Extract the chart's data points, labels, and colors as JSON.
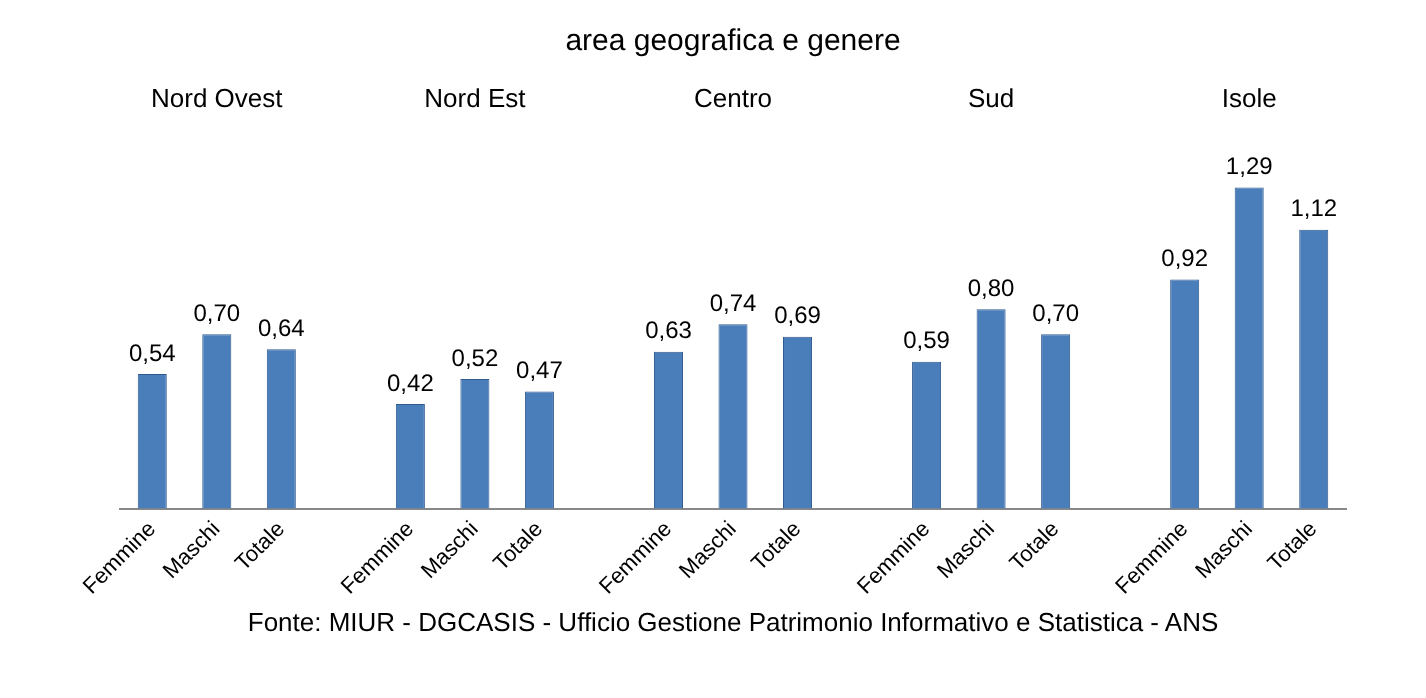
{
  "chart_data": {
    "type": "bar",
    "title": "area geografica e genere",
    "categories": [
      "Femmine",
      "Maschi",
      "Totale",
      null,
      "Femmine",
      "Maschi",
      "Totale",
      null,
      "Femmine",
      "Maschi",
      "Totale",
      null,
      "Femmine",
      "Maschi",
      "Totale",
      null,
      "Femmine",
      "Maschi",
      "Totale"
    ],
    "values": [
      0.54,
      0.7,
      0.64,
      null,
      0.42,
      0.52,
      0.47,
      null,
      0.63,
      0.74,
      0.69,
      null,
      0.59,
      0.8,
      0.7,
      null,
      0.92,
      1.29,
      1.12
    ],
    "value_labels": [
      "0,54",
      "0,70",
      "0,64",
      null,
      "0,42",
      "0,52",
      "0,47",
      null,
      "0,63",
      "0,74",
      "0,69",
      null,
      "0,59",
      "0,80",
      "0,70",
      null,
      "0,92",
      "1,29",
      "1,12"
    ],
    "color": "#4a7ebb",
    "annotations": [
      "Nord Ovest",
      "Nord Est",
      "Centro",
      "Sud",
      "Isole",
      "Fonte: MIUR - DGCASIS - Ufficio Gestione Patrimonio Informativo e Statistica - ANS"
    ],
    "grid": false,
    "legend": false
  }
}
